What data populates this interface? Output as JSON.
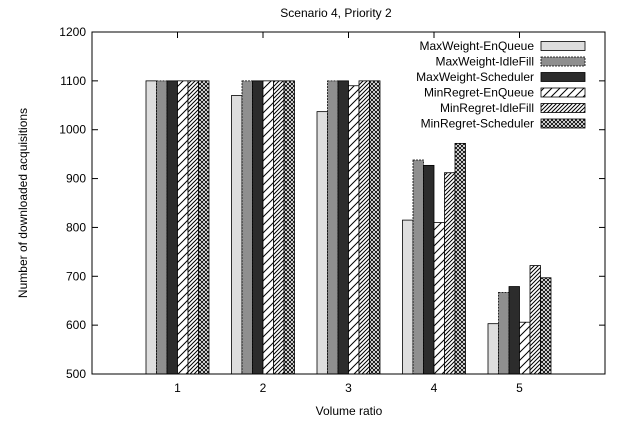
{
  "chart_data": {
    "type": "bar",
    "title": "Scenario 4, Priority 2",
    "xlabel": "Volume ratio",
    "ylabel": "Number of downloaded acquisitions",
    "categories": [
      "1",
      "2",
      "3",
      "4",
      "5"
    ],
    "ylim": [
      500,
      1200
    ],
    "yticks": [
      500,
      600,
      700,
      800,
      900,
      1000,
      1100,
      1200
    ],
    "grid": false,
    "legend_position": "top-right",
    "series": [
      {
        "name": "MaxWeight-EnQueue",
        "pattern": "solid-light",
        "values": [
          1100,
          1070,
          1037,
          815,
          603
        ]
      },
      {
        "name": "MaxWeight-IdleFill",
        "pattern": "solid-gray",
        "values": [
          1100,
          1100,
          1100,
          938,
          667
        ]
      },
      {
        "name": "MaxWeight-Scheduler",
        "pattern": "solid-dark",
        "values": [
          1100,
          1100,
          1100,
          927,
          679
        ]
      },
      {
        "name": "MinRegret-EnQueue",
        "pattern": "diagonal",
        "values": [
          1100,
          1100,
          1090,
          810,
          606
        ]
      },
      {
        "name": "MinRegret-IdleFill",
        "pattern": "dense-diagonal",
        "values": [
          1100,
          1100,
          1100,
          912,
          722
        ]
      },
      {
        "name": "MinRegret-Scheduler",
        "pattern": "crosshatch",
        "values": [
          1100,
          1100,
          1100,
          972,
          697
        ]
      }
    ]
  }
}
